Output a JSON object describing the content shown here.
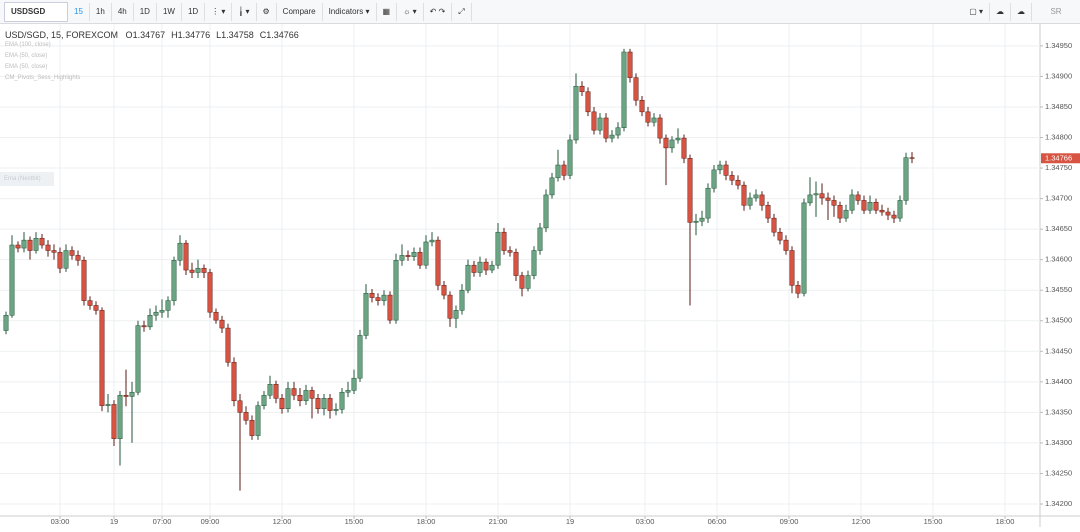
{
  "toolbar": {
    "symbol": "USDSGD",
    "intervals": [
      "15",
      "1h",
      "4h",
      "1D",
      "1W",
      "1D"
    ],
    "buttons": [
      "Compare",
      "Indicators"
    ],
    "user": "SR"
  },
  "legend": {
    "title": "USD/SGD, 15, FOREXCOM",
    "indicators": [
      "EMA (100, close)",
      "EMA (50, close)",
      "EMA (50, close)",
      "CM_Pivots_Sess_Highlights"
    ],
    "side_label": "Ema (Nextbit)"
  },
  "chart_data": {
    "type": "candlestick",
    "ohlc_labels": [
      "O",
      "H",
      "L",
      "C"
    ],
    "up_color": "#6ba583",
    "down_color": "#d75442",
    "up_border": "#225437",
    "down_border": "#5b1a13",
    "grid": true,
    "ylim": [
      1.34182,
      1.34976
    ],
    "yticks": [
      {
        "value": 1.342,
        "label": "1.34200"
      },
      {
        "value": 1.3425,
        "label": "1.34250"
      },
      {
        "value": 1.343,
        "label": "1.34300"
      },
      {
        "value": 1.3435,
        "label": "1.34350"
      },
      {
        "value": 1.344,
        "label": "1.34400"
      },
      {
        "value": 1.3445,
        "label": "1.34450"
      },
      {
        "value": 1.345,
        "label": "1.34500"
      },
      {
        "value": 1.3455,
        "label": "1.34550"
      },
      {
        "value": 1.346,
        "label": "1.34600"
      },
      {
        "value": 1.3465,
        "label": "1.34650"
      },
      {
        "value": 1.347,
        "label": "1.34700"
      },
      {
        "value": 1.3475,
        "label": "1.34750"
      },
      {
        "value": 1.348,
        "label": "1.34800"
      },
      {
        "value": 1.3485,
        "label": "1.34850"
      },
      {
        "value": 1.349,
        "label": "1.34900"
      },
      {
        "value": 1.3495,
        "label": "1.34950"
      }
    ],
    "xlim": [
      -1,
      172
    ],
    "xticks": [
      {
        "value": 9,
        "label": "03:00"
      },
      {
        "value": 18,
        "label": "19"
      },
      {
        "value": 26,
        "label": "07:00"
      },
      {
        "value": 34,
        "label": "09:00"
      },
      {
        "value": 46,
        "label": "12:00"
      },
      {
        "value": 58,
        "label": "15:00"
      },
      {
        "value": 70,
        "label": "18:00"
      },
      {
        "value": 82,
        "label": "21:00"
      },
      {
        "value": 94,
        "label": "19"
      },
      {
        "value": 106.5,
        "label": "03:00"
      },
      {
        "value": 118.5,
        "label": "06:00"
      },
      {
        "value": 130.5,
        "label": "09:00"
      },
      {
        "value": 142.5,
        "label": "12:00"
      },
      {
        "value": 154.5,
        "label": "15:00"
      },
      {
        "value": 166.5,
        "label": "18:00"
      }
    ],
    "ohlc": [
      [
        1.34484,
        1.34515,
        1.34478,
        1.34509
      ],
      [
        1.34509,
        1.3464,
        1.34505,
        1.34624
      ],
      [
        1.34624,
        1.3463,
        1.34612,
        1.34619
      ],
      [
        1.34619,
        1.34645,
        1.34612,
        1.34632
      ],
      [
        1.34632,
        1.34638,
        1.346,
        1.34615
      ],
      [
        1.34615,
        1.34645,
        1.3461,
        1.34635
      ],
      [
        1.34635,
        1.34642,
        1.34618,
        1.34624
      ],
      [
        1.34624,
        1.34632,
        1.34605,
        1.34615
      ],
      [
        1.34615,
        1.34625,
        1.346,
        1.34612
      ],
      [
        1.34612,
        1.3462,
        1.34578,
        1.34586
      ],
      [
        1.34586,
        1.34625,
        1.3458,
        1.34615
      ],
      [
        1.34615,
        1.34622,
        1.346,
        1.34607
      ],
      [
        1.34607,
        1.34615,
        1.3459,
        1.34599
      ],
      [
        1.34599,
        1.34605,
        1.34525,
        1.34533
      ],
      [
        1.34533,
        1.3454,
        1.34518,
        1.34525
      ],
      [
        1.34525,
        1.34532,
        1.3451,
        1.34517
      ],
      [
        1.34517,
        1.34522,
        1.34352,
        1.34361
      ],
      [
        1.34361,
        1.3438,
        1.3435,
        1.34363
      ],
      [
        1.34363,
        1.3437,
        1.34295,
        1.34307
      ],
      [
        1.34307,
        1.34385,
        1.34263,
        1.34378
      ],
      [
        1.34378,
        1.3442,
        1.3436,
        1.34376
      ],
      [
        1.34376,
        1.344,
        1.343,
        1.34383
      ],
      [
        1.34383,
        1.345,
        1.34378,
        1.34492
      ],
      [
        1.34492,
        1.345,
        1.34482,
        1.3449
      ],
      [
        1.3449,
        1.3452,
        1.34485,
        1.34509
      ],
      [
        1.34509,
        1.34525,
        1.345,
        1.34514
      ],
      [
        1.34514,
        1.34535,
        1.34505,
        1.34517
      ],
      [
        1.34517,
        1.3454,
        1.34505,
        1.34533
      ],
      [
        1.34533,
        1.34605,
        1.34525,
        1.34599
      ],
      [
        1.34599,
        1.3464,
        1.3459,
        1.34627
      ],
      [
        1.34627,
        1.34632,
        1.34575,
        1.34583
      ],
      [
        1.34583,
        1.34595,
        1.3457,
        1.34579
      ],
      [
        1.34579,
        1.346,
        1.3457,
        1.34586
      ],
      [
        1.34586,
        1.34592,
        1.3457,
        1.34579
      ],
      [
        1.34579,
        1.34585,
        1.34505,
        1.34514
      ],
      [
        1.34514,
        1.3452,
        1.34495,
        1.34501
      ],
      [
        1.34501,
        1.34508,
        1.3448,
        1.34488
      ],
      [
        1.34488,
        1.34495,
        1.34425,
        1.34432
      ],
      [
        1.34432,
        1.3444,
        1.3436,
        1.34369
      ],
      [
        1.34369,
        1.3438,
        1.34222,
        1.3435
      ],
      [
        1.3435,
        1.3436,
        1.3433,
        1.34337
      ],
      [
        1.34337,
        1.34345,
        1.34305,
        1.34312
      ],
      [
        1.34312,
        1.34368,
        1.34305,
        1.34361
      ],
      [
        1.34361,
        1.34385,
        1.34355,
        1.34378
      ],
      [
        1.34378,
        1.3441,
        1.34372,
        1.34396
      ],
      [
        1.34396,
        1.34402,
        1.34365,
        1.34373
      ],
      [
        1.34373,
        1.3438,
        1.34348,
        1.34356
      ],
      [
        1.34356,
        1.344,
        1.3435,
        1.34389
      ],
      [
        1.34389,
        1.344,
        1.3437,
        1.34378
      ],
      [
        1.34378,
        1.3439,
        1.3436,
        1.34369
      ],
      [
        1.34369,
        1.34395,
        1.34362,
        1.34386
      ],
      [
        1.34386,
        1.34392,
        1.3434,
        1.34373
      ],
      [
        1.34373,
        1.3438,
        1.34348,
        1.34356
      ],
      [
        1.34356,
        1.3438,
        1.34345,
        1.34373
      ],
      [
        1.34373,
        1.3438,
        1.3434,
        1.34353
      ],
      [
        1.34353,
        1.34365,
        1.34345,
        1.34355
      ],
      [
        1.34355,
        1.3439,
        1.34348,
        1.34383
      ],
      [
        1.34383,
        1.344,
        1.34375,
        1.34386
      ],
      [
        1.34386,
        1.3442,
        1.3438,
        1.34406
      ],
      [
        1.34406,
        1.34485,
        1.344,
        1.34476
      ],
      [
        1.34476,
        1.3456,
        1.3447,
        1.34545
      ],
      [
        1.34545,
        1.34552,
        1.3453,
        1.34538
      ],
      [
        1.34538,
        1.34545,
        1.34525,
        1.34533
      ],
      [
        1.34533,
        1.3455,
        1.34525,
        1.34542
      ],
      [
        1.34542,
        1.34548,
        1.34495,
        1.34501
      ],
      [
        1.34501,
        1.3461,
        1.34495,
        1.34599
      ],
      [
        1.34599,
        1.34625,
        1.3459,
        1.34607
      ],
      [
        1.34607,
        1.34615,
        1.34598,
        1.34605
      ],
      [
        1.34605,
        1.3462,
        1.34598,
        1.34612
      ],
      [
        1.34612,
        1.3462,
        1.34585,
        1.34591
      ],
      [
        1.34591,
        1.3464,
        1.34585,
        1.34629
      ],
      [
        1.34629,
        1.34645,
        1.34622,
        1.34632
      ],
      [
        1.34632,
        1.34638,
        1.3455,
        1.34558
      ],
      [
        1.34558,
        1.34565,
        1.34535,
        1.34542
      ],
      [
        1.34542,
        1.34548,
        1.3449,
        1.34504
      ],
      [
        1.34504,
        1.34525,
        1.34488,
        1.34517
      ],
      [
        1.34517,
        1.3456,
        1.3451,
        1.3455
      ],
      [
        1.3455,
        1.346,
        1.34545,
        1.34591
      ],
      [
        1.34591,
        1.34598,
        1.34572,
        1.34579
      ],
      [
        1.34579,
        1.34605,
        1.34572,
        1.34596
      ],
      [
        1.34596,
        1.34602,
        1.34575,
        1.34583
      ],
      [
        1.34583,
        1.34598,
        1.34578,
        1.34591
      ],
      [
        1.34591,
        1.3466,
        1.34585,
        1.34645
      ],
      [
        1.34645,
        1.34652,
        1.34608,
        1.34615
      ],
      [
        1.34615,
        1.34622,
        1.34605,
        1.34612
      ],
      [
        1.34612,
        1.34618,
        1.34565,
        1.34574
      ],
      [
        1.34574,
        1.3458,
        1.3454,
        1.34553
      ],
      [
        1.34553,
        1.34582,
        1.34548,
        1.34574
      ],
      [
        1.34574,
        1.34622,
        1.34568,
        1.34615
      ],
      [
        1.34615,
        1.3466,
        1.34608,
        1.34652
      ],
      [
        1.34652,
        1.34715,
        1.34645,
        1.34706
      ],
      [
        1.34706,
        1.34742,
        1.347,
        1.34734
      ],
      [
        1.34734,
        1.3478,
        1.34728,
        1.34755
      ],
      [
        1.34755,
        1.34762,
        1.3473,
        1.34738
      ],
      [
        1.34738,
        1.34805,
        1.34732,
        1.34796
      ],
      [
        1.34796,
        1.34905,
        1.3479,
        1.34884
      ],
      [
        1.34884,
        1.34892,
        1.34868,
        1.34875
      ],
      [
        1.34875,
        1.34882,
        1.34835,
        1.34842
      ],
      [
        1.34842,
        1.3485,
        1.34805,
        1.34812
      ],
      [
        1.34812,
        1.3484,
        1.34805,
        1.34832
      ],
      [
        1.34832,
        1.3484,
        1.34792,
        1.34799
      ],
      [
        1.34799,
        1.34812,
        1.34792,
        1.34804
      ],
      [
        1.34804,
        1.34825,
        1.34798,
        1.34816
      ],
      [
        1.34816,
        1.34945,
        1.3481,
        1.3494
      ],
      [
        1.3494,
        1.34945,
        1.3489,
        1.34898
      ],
      [
        1.34898,
        1.34905,
        1.34852,
        1.34861
      ],
      [
        1.34861,
        1.34868,
        1.34835,
        1.34842
      ],
      [
        1.34842,
        1.3485,
        1.34818,
        1.34825
      ],
      [
        1.34825,
        1.3484,
        1.34818,
        1.34832
      ],
      [
        1.34832,
        1.34838,
        1.3479,
        1.34799
      ],
      [
        1.34799,
        1.34805,
        1.34722,
        1.34783
      ],
      [
        1.34783,
        1.34802,
        1.34775,
        1.34796
      ],
      [
        1.34796,
        1.34815,
        1.3479,
        1.34799
      ],
      [
        1.34799,
        1.34805,
        1.34758,
        1.34766
      ],
      [
        1.34766,
        1.34772,
        1.34525,
        1.34661
      ],
      [
        1.34661,
        1.34675,
        1.3464,
        1.34663
      ],
      [
        1.34663,
        1.3468,
        1.34655,
        1.34668
      ],
      [
        1.34668,
        1.34725,
        1.3466,
        1.34717
      ],
      [
        1.34717,
        1.34755,
        1.3471,
        1.34747
      ],
      [
        1.34747,
        1.34762,
        1.3474,
        1.34755
      ],
      [
        1.34755,
        1.34762,
        1.3473,
        1.34738
      ],
      [
        1.34738,
        1.34745,
        1.34722,
        1.3473
      ],
      [
        1.3473,
        1.34738,
        1.34715,
        1.34722
      ],
      [
        1.34722,
        1.34728,
        1.3468,
        1.34689
      ],
      [
        1.34689,
        1.3471,
        1.34682,
        1.34701
      ],
      [
        1.34701,
        1.34715,
        1.34695,
        1.34706
      ],
      [
        1.34706,
        1.34712,
        1.3468,
        1.34689
      ],
      [
        1.34689,
        1.34695,
        1.3466,
        1.34668
      ],
      [
        1.34668,
        1.34675,
        1.34638,
        1.34645
      ],
      [
        1.34645,
        1.34652,
        1.34625,
        1.34632
      ],
      [
        1.34632,
        1.3464,
        1.34608,
        1.34615
      ],
      [
        1.34615,
        1.34622,
        1.34545,
        1.34558
      ],
      [
        1.34558,
        1.34565,
        1.34537,
        1.34545
      ],
      [
        1.34545,
        1.347,
        1.3454,
        1.34693
      ],
      [
        1.34693,
        1.34735,
        1.34688,
        1.34706
      ],
      [
        1.34706,
        1.34728,
        1.3467,
        1.34708
      ],
      [
        1.34708,
        1.34725,
        1.3469,
        1.34701
      ],
      [
        1.34701,
        1.3471,
        1.34665,
        1.34697
      ],
      [
        1.34697,
        1.34705,
        1.3467,
        1.34689
      ],
      [
        1.34689,
        1.34695,
        1.3466,
        1.34668
      ],
      [
        1.34668,
        1.3469,
        1.34662,
        1.34681
      ],
      [
        1.34681,
        1.34715,
        1.34675,
        1.34706
      ],
      [
        1.34706,
        1.34712,
        1.3469,
        1.34697
      ],
      [
        1.34697,
        1.34705,
        1.34675,
        1.34681
      ],
      [
        1.34681,
        1.34705,
        1.34675,
        1.34694
      ],
      [
        1.34694,
        1.347,
        1.34675,
        1.34681
      ],
      [
        1.34681,
        1.3469,
        1.34672,
        1.34678
      ],
      [
        1.34678,
        1.34685,
        1.34665,
        1.34673
      ],
      [
        1.34673,
        1.3468,
        1.3466,
        1.34668
      ],
      [
        1.34668,
        1.34705,
        1.34662,
        1.34697
      ],
      [
        1.34697,
        1.34775,
        1.3469,
        1.34767
      ],
      [
        1.34767,
        1.34776,
        1.34758,
        1.34766
      ]
    ]
  }
}
